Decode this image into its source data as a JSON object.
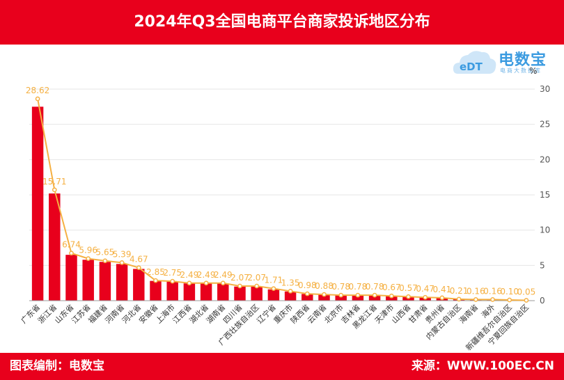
{
  "header": {
    "title": "2024年Q3全国电商平台商家投诉地区分布"
  },
  "footer": {
    "left": "图表编制：电数宝",
    "right": "来源：WWW.100EC.CN"
  },
  "logo": {
    "text": "电数宝",
    "sub": "电商大数据库",
    "badge": "eDT"
  },
  "colors": {
    "bar": "#e8001c",
    "line": "#f5b042",
    "header": "#e8001c"
  },
  "chart_data": {
    "type": "bar",
    "unit": "%",
    "categories": [
      "广东省",
      "浙江省",
      "山东省",
      "江苏省",
      "福建省",
      "河南省",
      "河北省",
      "安徽省",
      "上海市",
      "江西省",
      "湖北省",
      "湖南省",
      "四川省",
      "广西壮族自治区",
      "辽宁省",
      "重庆市",
      "陕西省",
      "云南省",
      "北京市",
      "吉林省",
      "黑龙江省",
      "天津市",
      "山西省",
      "甘肃省",
      "贵州省",
      "内蒙古自治区",
      "海南省",
      "海外",
      "新疆维吾尔自治区",
      "宁夏回族自治区"
    ],
    "bar_values": [
      27.5,
      15.2,
      6.5,
      5.8,
      5.5,
      5.2,
      4.5,
      2.8,
      2.7,
      2.45,
      2.45,
      2.45,
      2.0,
      2.0,
      1.6,
      1.3,
      0.95,
      0.85,
      0.75,
      0.75,
      0.75,
      0.65,
      0.55,
      0.45,
      0.4,
      0.2,
      0.15,
      0.15,
      0.1,
      0.05
    ],
    "line_values": [
      28.62,
      15.71,
      6.74,
      5.96,
      5.65,
      5.39,
      4.67,
      2.85,
      2.75,
      2.49,
      2.49,
      2.49,
      2.07,
      2.07,
      1.71,
      1.35,
      0.98,
      0.88,
      0.78,
      0.78,
      0.78,
      0.67,
      0.57,
      0.47,
      0.41,
      0.21,
      0.16,
      0.16,
      0.1,
      0.05
    ],
    "data_labels": [
      "28.62",
      "15.71",
      "6.74",
      "5.96",
      "5.65",
      "5.39",
      "4.67",
      "2.85",
      "2.75",
      "2.49",
      "2.49",
      "2.49",
      "2.07",
      "2.07",
      "1.71",
      "1.35",
      "0.98",
      "0.88",
      "0.78",
      "0.78",
      "0.78",
      "0.67",
      "0.57",
      "0.47",
      "0.41",
      "0.21",
      "0.16",
      "0.16",
      "0.10",
      "0.05"
    ],
    "y_ticks": [
      "0",
      "5",
      "10",
      "15",
      "20",
      "25",
      "30"
    ],
    "ylim": [
      0,
      30
    ],
    "y_axis_side": "right",
    "grid": true
  }
}
